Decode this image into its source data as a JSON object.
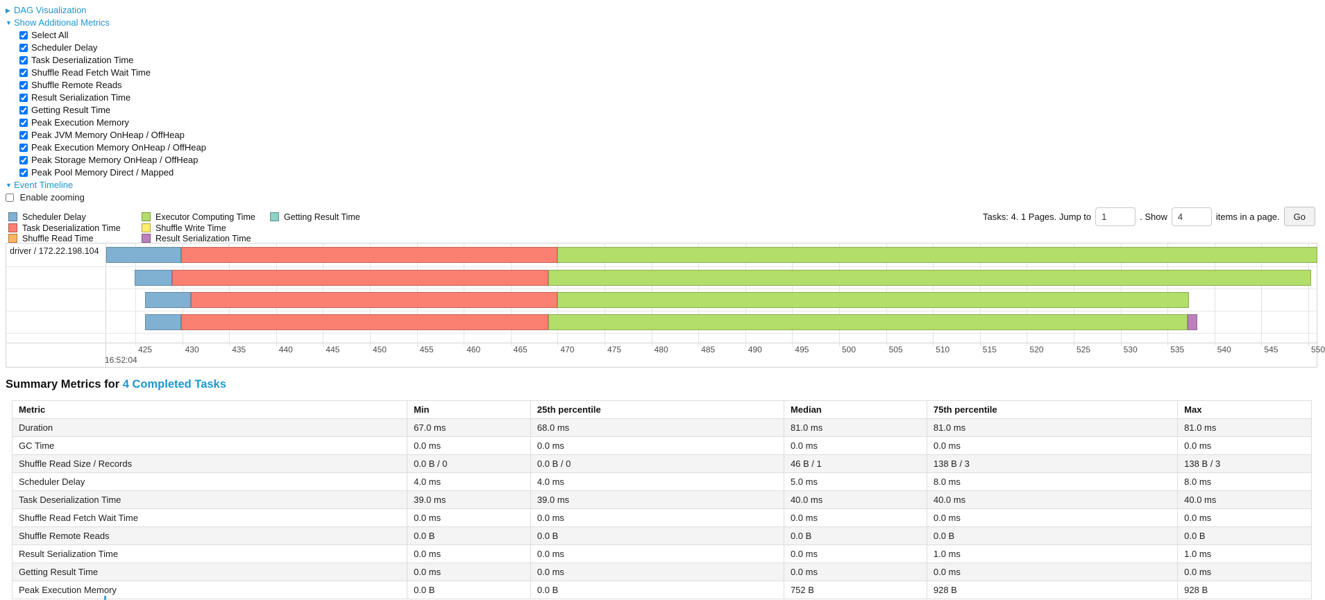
{
  "page": {
    "links": {
      "dag": "DAG Visualization",
      "metrics": "Show Additional Metrics",
      "timeline": "Event Timeline"
    },
    "metric_checkboxes": [
      "Select All",
      "Scheduler Delay",
      "Task Deserialization Time",
      "Shuffle Read Fetch Wait Time",
      "Shuffle Remote Reads",
      "Result Serialization Time",
      "Getting Result Time",
      "Peak Execution Memory",
      "Peak JVM Memory OnHeap / OffHeap",
      "Peak Execution Memory OnHeap / OffHeap",
      "Peak Storage Memory OnHeap / OffHeap",
      "Peak Pool Memory Direct / Mapped"
    ],
    "metric_checkboxes_checked": true,
    "enable_zooming": "Enable zooming",
    "enable_zooming_checked": false
  },
  "colors": {
    "scheduler_delay": "#80B1D3",
    "task_deserialization": "#FB8072",
    "shuffle_read": "#FDB462",
    "executor_computing": "#B3DE69",
    "shuffle_write": "#FFED6F",
    "result_serialization": "#BC80BD",
    "getting_result": "#8DD3C7",
    "link": "#1e96d2"
  },
  "legend": {
    "columns": [
      [
        {
          "label": "Scheduler Delay",
          "key": "scheduler_delay"
        },
        {
          "label": "Task Deserialization Time",
          "key": "task_deserialization"
        },
        {
          "label": "Shuffle Read Time",
          "key": "shuffle_read"
        }
      ],
      [
        {
          "label": "Executor Computing Time",
          "key": "executor_computing"
        },
        {
          "label": "Shuffle Write Time",
          "key": "shuffle_write"
        },
        {
          "label": "Result Serialization Time",
          "key": "result_serialization"
        }
      ],
      [
        {
          "label": "Getting Result Time",
          "key": "getting_result"
        }
      ]
    ]
  },
  "pagination": {
    "tasks_text": "Tasks: 4. 1 Pages. Jump to",
    "jump_value": "1",
    "show_text": ". Show",
    "show_value": "4",
    "items_text": "items in a page.",
    "go_label": "Go"
  },
  "chart_data": {
    "type": "timeline",
    "group_label": "driver / 172.22.198.104",
    "x_axis": {
      "unit": "ms of second",
      "major_label": "16:52:04",
      "tick_start": 425,
      "tick_end": 550,
      "tick_step": 5
    },
    "tasks": [
      {
        "segments": [
          {
            "key": "scheduler_delay",
            "start": 421.9,
            "end": 429.9
          },
          {
            "key": "task_deserialization",
            "start": 429.9,
            "end": 470.0
          },
          {
            "key": "executor_computing",
            "start": 470.0,
            "end": 551.0
          }
        ]
      },
      {
        "segments": [
          {
            "key": "scheduler_delay",
            "start": 424.9,
            "end": 428.9
          },
          {
            "key": "task_deserialization",
            "start": 428.9,
            "end": 469.0
          },
          {
            "key": "executor_computing",
            "start": 469.0,
            "end": 550.3
          }
        ]
      },
      {
        "segments": [
          {
            "key": "scheduler_delay",
            "start": 426.0,
            "end": 430.9
          },
          {
            "key": "task_deserialization",
            "start": 430.9,
            "end": 470.0
          },
          {
            "key": "executor_computing",
            "start": 470.0,
            "end": 537.3
          }
        ]
      },
      {
        "segments": [
          {
            "key": "scheduler_delay",
            "start": 426.0,
            "end": 429.9
          },
          {
            "key": "task_deserialization",
            "start": 429.9,
            "end": 469.0
          },
          {
            "key": "executor_computing",
            "start": 469.0,
            "end": 537.1
          },
          {
            "key": "result_serialization",
            "start": 537.1,
            "end": 538.2
          }
        ]
      }
    ]
  },
  "summary": {
    "title_prefix": "Summary Metrics for ",
    "title_link": "4 Completed Tasks",
    "columns": [
      "Metric",
      "Min",
      "25th percentile",
      "Median",
      "75th percentile",
      "Max"
    ],
    "col_widths_pct": [
      30.4,
      9.5,
      19.5,
      11.0,
      19.3,
      10.3
    ],
    "rows": [
      {
        "metric": "Duration",
        "values": [
          "67.0 ms",
          "68.0 ms",
          "81.0 ms",
          "81.0 ms",
          "81.0 ms"
        ]
      },
      {
        "metric": "GC Time",
        "values": [
          "0.0 ms",
          "0.0 ms",
          "0.0 ms",
          "0.0 ms",
          "0.0 ms"
        ]
      },
      {
        "metric": "Shuffle Read Size / Records",
        "values": [
          "0.0 B / 0",
          "0.0 B / 0",
          "46 B / 1",
          "138 B / 3",
          "138 B / 3"
        ]
      },
      {
        "metric": "Scheduler Delay",
        "values": [
          "4.0 ms",
          "4.0 ms",
          "5.0 ms",
          "8.0 ms",
          "8.0 ms"
        ]
      },
      {
        "metric": "Task Deserialization Time",
        "values": [
          "39.0 ms",
          "39.0 ms",
          "40.0 ms",
          "40.0 ms",
          "40.0 ms"
        ]
      },
      {
        "metric": "Shuffle Read Fetch Wait Time",
        "values": [
          "0.0 ms",
          "0.0 ms",
          "0.0 ms",
          "0.0 ms",
          "0.0 ms"
        ]
      },
      {
        "metric": "Shuffle Remote Reads",
        "values": [
          "0.0 B",
          "0.0 B",
          "0.0 B",
          "0.0 B",
          "0.0 B"
        ]
      },
      {
        "metric": "Result Serialization Time",
        "values": [
          "0.0 ms",
          "0.0 ms",
          "0.0 ms",
          "1.0 ms",
          "1.0 ms"
        ]
      },
      {
        "metric": "Getting Result Time",
        "values": [
          "0.0 ms",
          "0.0 ms",
          "0.0 ms",
          "0.0 ms",
          "0.0 ms"
        ]
      },
      {
        "metric": "Peak Execution Memory",
        "values": [
          "0.0 B",
          "0.0 B",
          "752 B",
          "928 B",
          "928 B"
        ]
      }
    ]
  }
}
